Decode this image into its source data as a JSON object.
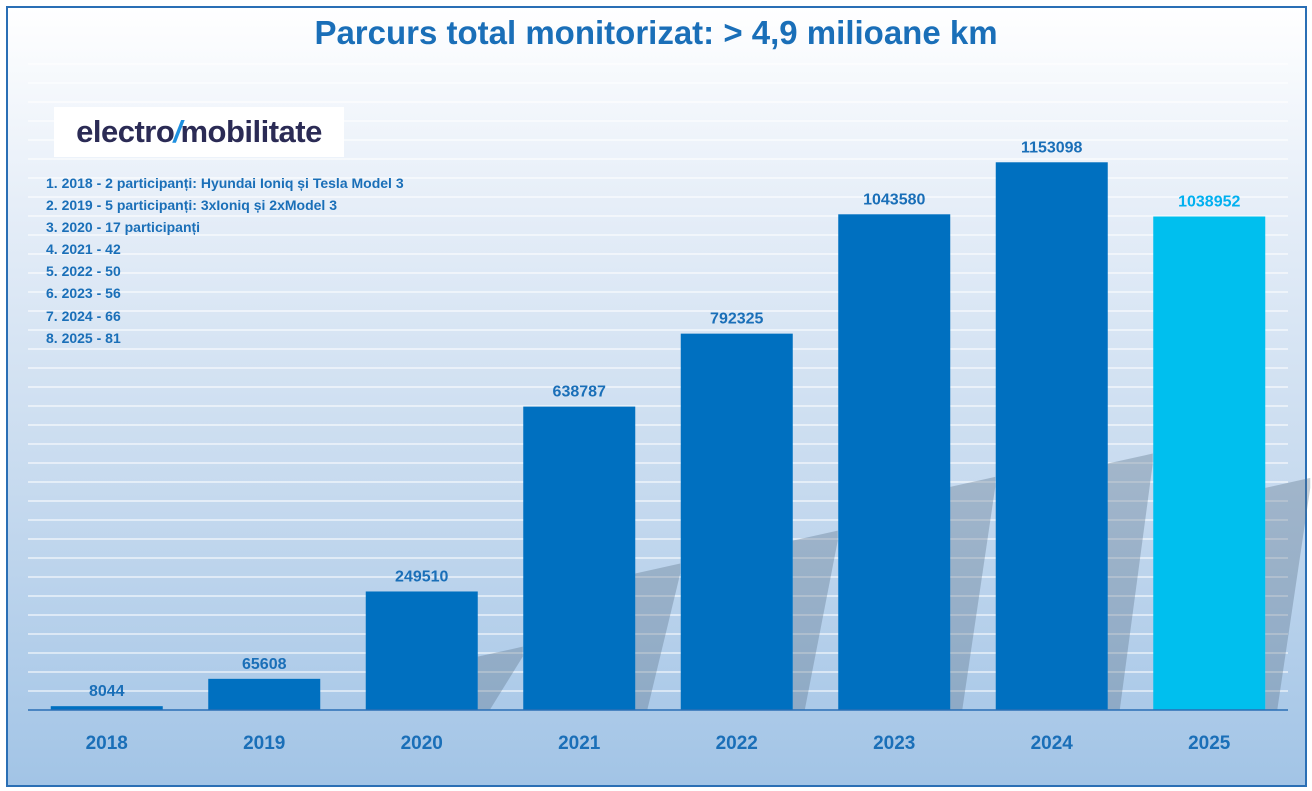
{
  "chart_data": {
    "type": "bar",
    "title": "Parcurs total monitorizat:  > 4,9 milioane km",
    "categories": [
      "2018",
      "2019",
      "2020",
      "2021",
      "2022",
      "2023",
      "2024",
      "2025"
    ],
    "values": [
      8044,
      65608,
      249510,
      638787,
      792325,
      1043580,
      1153098,
      1038952
    ],
    "data_labels": [
      "8044",
      "65608",
      "249510",
      "638787",
      "792325",
      "1043580",
      "1153098",
      "1038952"
    ],
    "xlabel": "",
    "ylabel": "",
    "ylim": [
      0,
      1400000
    ],
    "grid": true,
    "colors": {
      "default": "#0070c0",
      "highlight": "#00bfee",
      "label_default": "#1a6fb8",
      "label_highlight": "#00b0f0"
    },
    "highlight_index": 7
  },
  "logo": {
    "text_left": "electro",
    "bolt": "/",
    "text_right": "mobilitate"
  },
  "notes": [
    "1. 2018 - 2 participanți: Hyundai Ioniq și Tesla Model 3",
    "2. 2019 - 5 participanți: 3xIoniq și 2xModel 3",
    "3. 2020 - 17 participanți",
    "4. 2021 - 42",
    "5. 2022 - 50",
    "6. 2023 - 56",
    "7. 2024 - 66",
    "8. 2025 - 81"
  ]
}
